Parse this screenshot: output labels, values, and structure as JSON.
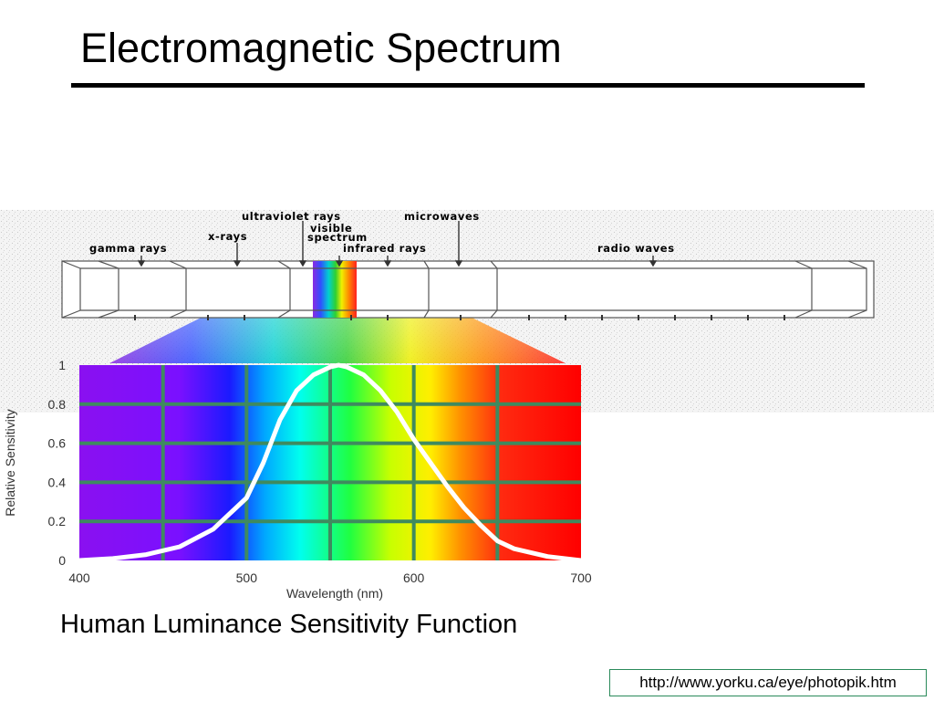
{
  "slide": {
    "title": "Electromagnetic Spectrum",
    "caption": "Human Luminance Sensitivity Function",
    "source_url": "http://www.yorku.ca/eye/photopik.htm"
  },
  "spectrum_band": {
    "labels": {
      "gamma": "gamma rays",
      "xrays": "x-rays",
      "uv": "ultraviolet rays",
      "visible_1": "visible",
      "visible_2": "spectrum",
      "microwaves": "microwaves",
      "infrared": "infrared rays",
      "radio": "radio waves"
    }
  },
  "colors": {
    "curve": "#ffffff",
    "grid": "#3f8a5f",
    "title_rule": "#000000",
    "link_border": "#2a8a5a"
  },
  "chart_data": {
    "type": "line",
    "title": "",
    "xlabel": "Wavelength (nm)",
    "ylabel": "Relative Sensitivity",
    "xlim": [
      400,
      700
    ],
    "ylim": [
      0,
      1
    ],
    "x_ticks": [
      "400",
      "500",
      "600",
      "700"
    ],
    "y_ticks": [
      "0",
      "0.2",
      "0.4",
      "0.6",
      "0.8",
      "1"
    ],
    "background": "visible color spectrum (violet to red)",
    "grid": true,
    "series": [
      {
        "x": [
          400,
          420,
          440,
          460,
          480,
          500,
          510,
          520,
          530,
          540,
          550,
          555,
          560,
          570,
          580,
          590,
          600,
          610,
          620,
          630,
          640,
          650,
          660,
          680,
          700
        ],
        "y": [
          0.0,
          0.01,
          0.03,
          0.07,
          0.16,
          0.32,
          0.5,
          0.72,
          0.87,
          0.95,
          0.99,
          1.0,
          0.99,
          0.95,
          0.87,
          0.76,
          0.62,
          0.5,
          0.38,
          0.27,
          0.18,
          0.1,
          0.06,
          0.02,
          0.0
        ]
      }
    ]
  }
}
